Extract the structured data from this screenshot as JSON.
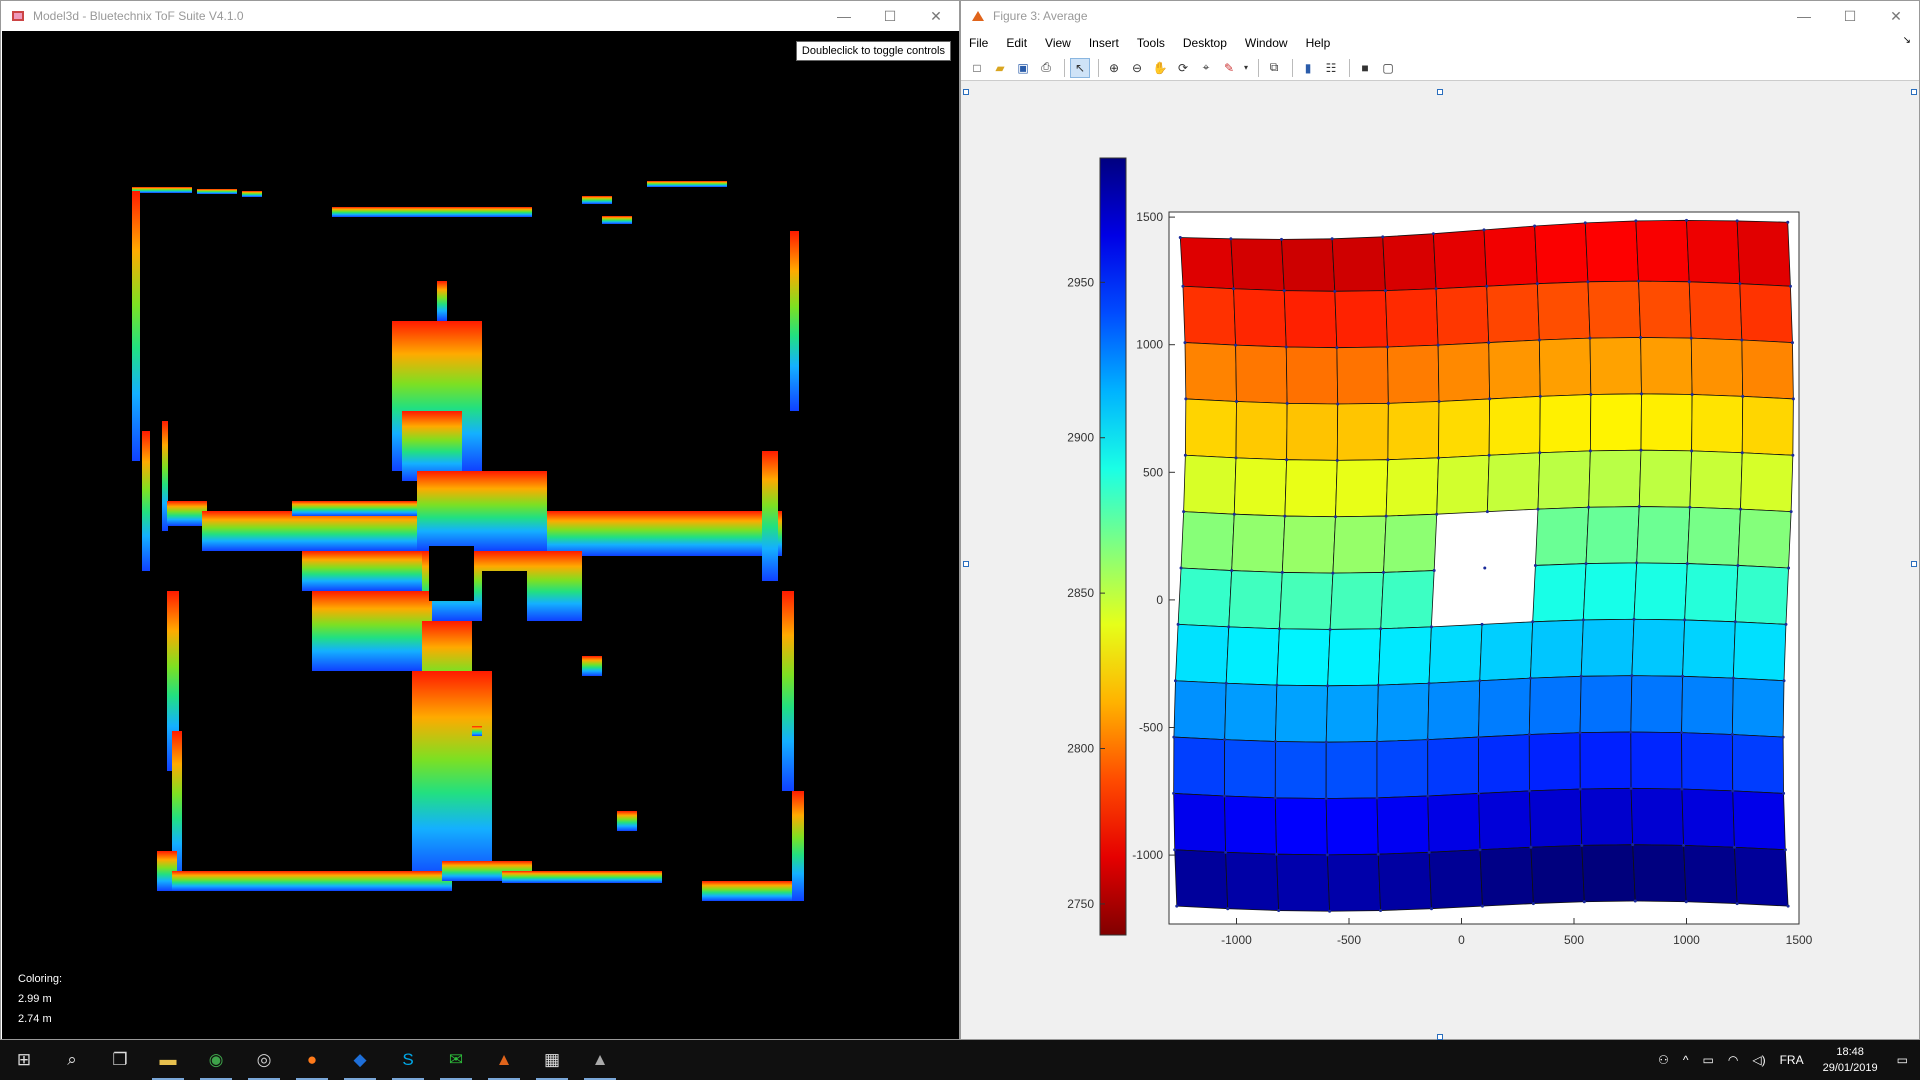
{
  "left_window": {
    "title": "Model3d - Bluetechnix ToF Suite V4.1.0",
    "toggle_label": "Doubleclick to toggle controls",
    "coloring_label": "Coloring:",
    "coloring_max": "2.99 m",
    "coloring_min": "2.74 m"
  },
  "right_window": {
    "title": "Figure 3: Average",
    "menu": [
      "File",
      "Edit",
      "View",
      "Insert",
      "Tools",
      "Desktop",
      "Window",
      "Help"
    ]
  },
  "window_controls": {
    "minimize": "—",
    "maximize": "☐",
    "close": "✕"
  },
  "chart_data": {
    "type": "heatmap",
    "title": "",
    "x_ticks": [
      -1000,
      -500,
      0,
      500,
      1000,
      1500
    ],
    "y_ticks": [
      1500,
      1000,
      500,
      0,
      -500,
      -1000
    ],
    "xlim": [
      -1300,
      1500
    ],
    "ylim": [
      -1270,
      1520
    ],
    "colorbar_ticks": [
      2950,
      2900,
      2850,
      2800,
      2750
    ],
    "colorbar_range": [
      2740,
      2990
    ],
    "colormap": "jet (red = 2750, blue = 3000)",
    "grid_rows": 13,
    "grid_cols": 13,
    "hole": {
      "x": [
        -100,
        320
      ],
      "y": [
        -80,
        350
      ]
    }
  },
  "taskbar": {
    "items": [
      {
        "name": "start",
        "glyph": "⊞"
      },
      {
        "name": "search",
        "glyph": "⌕"
      },
      {
        "name": "task-view",
        "glyph": "❐"
      },
      {
        "name": "file-explorer",
        "glyph": "▬",
        "color": "#e7c04e"
      },
      {
        "name": "app-eye",
        "glyph": "◉",
        "color": "#3ea34a"
      },
      {
        "name": "app-headset",
        "glyph": "◎",
        "color": "#ccc"
      },
      {
        "name": "firefox",
        "glyph": "●",
        "color": "#ff7a1a"
      },
      {
        "name": "app-chat",
        "glyph": "◆",
        "color": "#1e6fd9"
      },
      {
        "name": "skype",
        "glyph": "S",
        "color": "#00a8e8"
      },
      {
        "name": "line",
        "glyph": "✉",
        "color": "#2dbb3a"
      },
      {
        "name": "matlab",
        "glyph": "▲",
        "color": "#e0641b"
      },
      {
        "name": "calculator",
        "glyph": "▦",
        "color": "#ddd"
      },
      {
        "name": "app-prism",
        "glyph": "▲",
        "color": "#aaa"
      }
    ],
    "tray": {
      "language": "FRA",
      "time": "18:48",
      "date": "29/01/2019"
    }
  }
}
